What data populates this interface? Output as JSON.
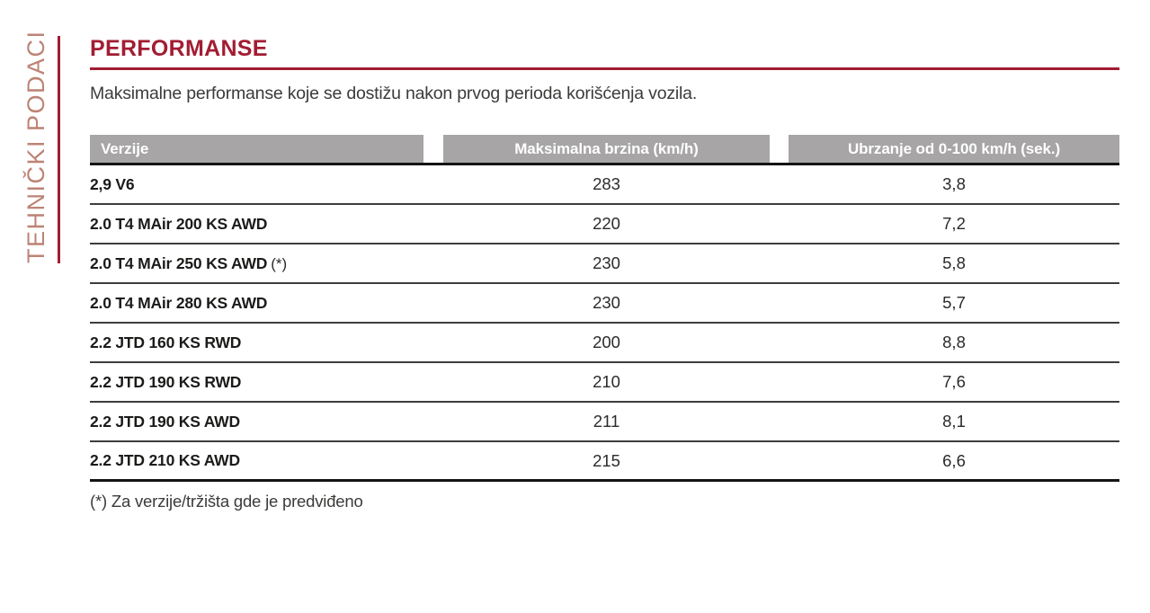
{
  "sidebar": {
    "label": "TEHNIČKI PODACI"
  },
  "header": {
    "title": "PERFORMANSE",
    "subtitle": "Maksimalne performanse koje se dostižu nakon prvog perioda korišćenja vozila."
  },
  "table": {
    "columns": {
      "versions": "Verzije",
      "max_speed": "Maksimalna brzina (km/h)",
      "acceleration": "Ubrzanje od 0-100 km/h (sek.)"
    },
    "rows": [
      {
        "label": "2,9 V6",
        "note": "",
        "speed": "283",
        "accel": "3,8"
      },
      {
        "label": "2.0 T4 MAir 200 KS AWD",
        "note": "",
        "speed": "220",
        "accel": "7,2"
      },
      {
        "label": "2.0 T4 MAir 250 KS AWD",
        "note": "(*)",
        "speed": "230",
        "accel": "5,8"
      },
      {
        "label": "2.0 T4 MAir 280 KS AWD",
        "note": "",
        "speed": "230",
        "accel": "5,7"
      },
      {
        "label": "2.2 JTD 160 KS RWD",
        "note": "",
        "speed": "200",
        "accel": "8,8"
      },
      {
        "label": "2.2 JTD 190 KS RWD",
        "note": "",
        "speed": "210",
        "accel": "7,6"
      },
      {
        "label": "2.2 JTD 190 KS AWD",
        "note": "",
        "speed": "211",
        "accel": "8,1"
      },
      {
        "label": "2.2 JTD 210 KS AWD",
        "note": "",
        "speed": "215",
        "accel": "6,6"
      }
    ]
  },
  "footnote": "(*) Za verzije/tržišta gde je predviđeno",
  "colors": {
    "accent_red": "#a21d33",
    "sidebar_text": "#bc8375",
    "header_gray": "#a7a5a6",
    "header_text": "#ffffff",
    "body_text": "#3b3b3a",
    "row_text": "#1b1b1a"
  }
}
